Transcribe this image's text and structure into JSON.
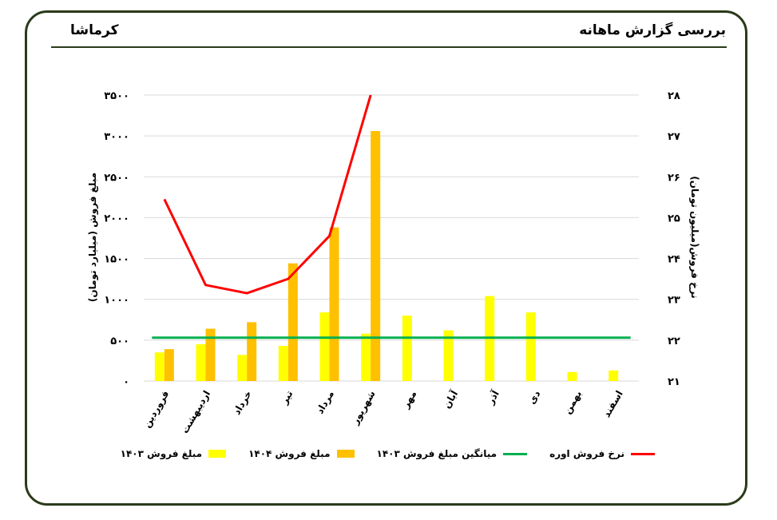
{
  "header": {
    "title": "بررسی گزارش ماهانه",
    "company": "کرماشا"
  },
  "colors": {
    "frame": "#2b3a1a",
    "sales_1403": "#ffff00",
    "sales_1404": "#ffc000",
    "avg_1403": "#00b050",
    "urea_rate": "#ff0000",
    "grid": "#d9d9d9"
  },
  "chart_data": {
    "type": "bar",
    "categories": [
      "فروردین",
      "اردیبهشت",
      "خرداد",
      "تیر",
      "مرداد",
      "شهریور",
      "مهر",
      "آبان",
      "آذر",
      "دی",
      "بهمن",
      "اسفند"
    ],
    "y_left": {
      "label": "مبلغ فروش (میلیارد تومان)",
      "ticks": [
        "۰",
        "۵۰۰",
        "۱۰۰۰",
        "۱۵۰۰",
        "۲۰۰۰",
        "۲۵۰۰",
        "۳۰۰۰",
        "۳۵۰۰"
      ],
      "range": [
        0,
        3500
      ]
    },
    "y_right": {
      "label": "نرخ فروش(میلیون تومان)",
      "ticks": [
        "۲۱",
        "۲۲",
        "۲۳",
        "۲۴",
        "۲۵",
        "۲۶",
        "۲۷",
        "۲۸"
      ],
      "range": [
        21,
        28
      ]
    },
    "series": [
      {
        "name": "مبلغ فروش ۱۴۰۳",
        "type": "bar",
        "axis": "left",
        "values": [
          350,
          450,
          320,
          430,
          840,
          580,
          800,
          620,
          1040,
          840,
          110,
          130
        ]
      },
      {
        "name": "مبلغ فروش ۱۴۰۴",
        "type": "bar",
        "axis": "left",
        "values": [
          390,
          640,
          720,
          1440,
          1880,
          3060,
          null,
          null,
          null,
          null,
          null,
          null
        ]
      },
      {
        "name": "میانگین مبلغ فروش ۱۴۰۳",
        "type": "line",
        "axis": "left",
        "values": [
          530,
          530,
          530,
          530,
          530,
          530,
          530,
          530,
          530,
          530,
          530,
          530
        ]
      },
      {
        "name": "نرخ فروش اوره",
        "type": "line",
        "axis": "right",
        "values": [
          25.45,
          23.35,
          23.15,
          23.5,
          24.55,
          28.0,
          null,
          null,
          null,
          null,
          null,
          null
        ]
      }
    ],
    "legend_position": "bottom",
    "grid": true
  }
}
